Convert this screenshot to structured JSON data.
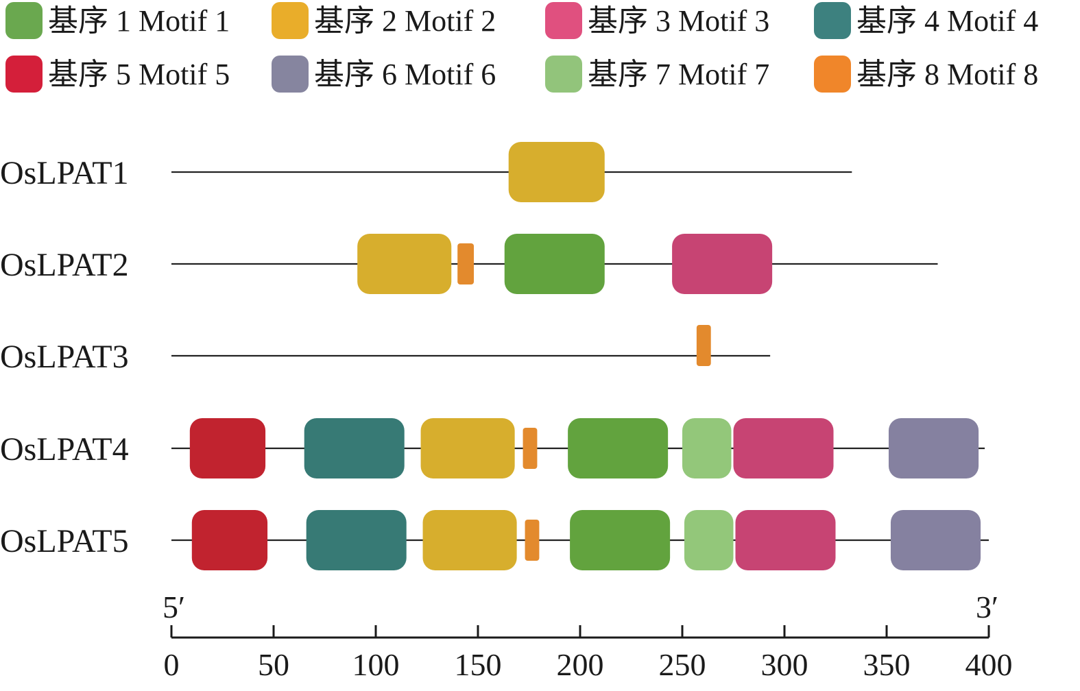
{
  "legend": [
    {
      "id": 1,
      "label": "基序 1 Motif 1",
      "color": "#6aa84f"
    },
    {
      "id": 2,
      "label": "基序 2 Motif 2",
      "color": "#e9ad2a"
    },
    {
      "id": 3,
      "label": "基序 3 Motif 3",
      "color": "#e0507f"
    },
    {
      "id": 4,
      "label": "基序 4 Motif 4",
      "color": "#3d817f"
    },
    {
      "id": 5,
      "label": "基序 5 Motif 5",
      "color": "#d41f3a"
    },
    {
      "id": 6,
      "label": "基序 6 Motif 6",
      "color": "#86859f"
    },
    {
      "id": 7,
      "label": "基序 7 Motif 7",
      "color": "#92c47b"
    },
    {
      "id": 8,
      "label": "基序 8 Motif 8",
      "color": "#f0862a"
    }
  ],
  "motif_colors": {
    "1": "#62a33e",
    "2": "#d7ae2d",
    "3": "#c74473",
    "4": "#377a75",
    "5": "#c1232f",
    "6": "#8581a0",
    "7": "#93c77a",
    "8": "#e38a2d"
  },
  "axis": {
    "min": 0,
    "max": 400,
    "ticks": [
      0,
      50,
      100,
      150,
      200,
      250,
      300,
      350,
      400
    ],
    "left_end_label": "5′",
    "right_end_label": "3′"
  },
  "sequences": [
    {
      "name": "OsLPAT1",
      "length": 333,
      "motifs": [
        {
          "motif": 2,
          "start": 165,
          "end": 212
        }
      ]
    },
    {
      "name": "OsLPAT2",
      "length": 375,
      "motifs": [
        {
          "motif": 2,
          "start": 91,
          "end": 137
        },
        {
          "motif": 8,
          "start": 140,
          "end": 148
        },
        {
          "motif": 1,
          "start": 163,
          "end": 212
        },
        {
          "motif": 3,
          "start": 245,
          "end": 294
        }
      ]
    },
    {
      "name": "OsLPAT3",
      "length": 293,
      "motifs": [
        {
          "motif": 8,
          "start": 257,
          "end": 264
        }
      ]
    },
    {
      "name": "OsLPAT4",
      "length": 398,
      "motifs": [
        {
          "motif": 5,
          "start": 9,
          "end": 46
        },
        {
          "motif": 4,
          "start": 65,
          "end": 114
        },
        {
          "motif": 2,
          "start": 122,
          "end": 168
        },
        {
          "motif": 8,
          "start": 172,
          "end": 179
        },
        {
          "motif": 1,
          "start": 194,
          "end": 243
        },
        {
          "motif": 7,
          "start": 250,
          "end": 274
        },
        {
          "motif": 3,
          "start": 275,
          "end": 324
        },
        {
          "motif": 6,
          "start": 351,
          "end": 395
        }
      ]
    },
    {
      "name": "OsLPAT5",
      "length": 400,
      "motifs": [
        {
          "motif": 5,
          "start": 10,
          "end": 47
        },
        {
          "motif": 4,
          "start": 66,
          "end": 115
        },
        {
          "motif": 2,
          "start": 123,
          "end": 169
        },
        {
          "motif": 8,
          "start": 173,
          "end": 180
        },
        {
          "motif": 1,
          "start": 195,
          "end": 244
        },
        {
          "motif": 7,
          "start": 251,
          "end": 275
        },
        {
          "motif": 3,
          "start": 276,
          "end": 325
        },
        {
          "motif": 6,
          "start": 352,
          "end": 396
        }
      ]
    }
  ]
}
